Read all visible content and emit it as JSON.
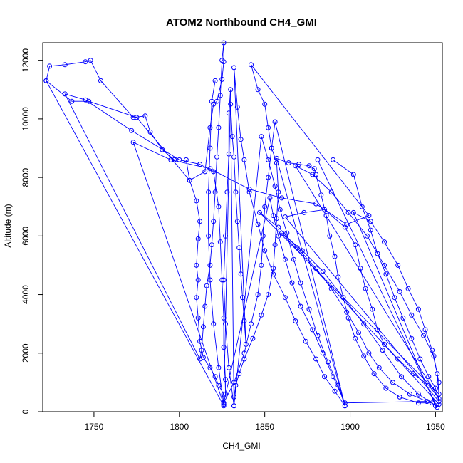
{
  "chart_data": {
    "type": "line",
    "title": "ATOM2 Northbound CH4_GMI",
    "xlabel": "CH4_GMI",
    "ylabel": "Altitude (m)",
    "xlim": [
      1720,
      1954
    ],
    "ylim": [
      0,
      12600
    ],
    "xticks": [
      1750,
      1800,
      1850,
      1900,
      1950
    ],
    "yticks": [
      0,
      2000,
      4000,
      6000,
      8000,
      10000,
      12000
    ],
    "grid": false,
    "series": [
      {
        "color": "#0000ff",
        "markers": "open-circle",
        "points": [
          [
            1722,
            11300
          ],
          [
            1724,
            11800
          ],
          [
            1733,
            11850
          ],
          [
            1745,
            11950
          ],
          [
            1748,
            12000
          ],
          [
            1754,
            11300
          ],
          [
            1773,
            10050
          ],
          [
            1780,
            10100
          ],
          [
            1783,
            9550
          ],
          [
            1790,
            8950
          ],
          [
            1797,
            8600
          ],
          [
            1804,
            8600
          ],
          [
            1806,
            7900
          ],
          [
            1810,
            7200
          ],
          [
            1812,
            6500
          ],
          [
            1811,
            5900
          ],
          [
            1810,
            5000
          ],
          [
            1811,
            4500
          ],
          [
            1810,
            3900
          ],
          [
            1811,
            3200
          ],
          [
            1812,
            2400
          ],
          [
            1814,
            1850
          ],
          [
            1818,
            1500
          ],
          [
            1821,
            1200
          ],
          [
            1823,
            900
          ],
          [
            1826,
            600
          ],
          [
            1826,
            200
          ],
          [
            1722,
            11300
          ],
          [
            1737,
            10600
          ],
          [
            1747,
            10600
          ],
          [
            1775,
            10050
          ],
          [
            1806,
            7900
          ],
          [
            1815,
            8200
          ],
          [
            1818,
            9700
          ],
          [
            1820,
            10500
          ],
          [
            1822,
            10600
          ],
          [
            1825,
            11350
          ],
          [
            1826,
            11950
          ],
          [
            1826,
            12600
          ],
          [
            1825,
            12000
          ],
          [
            1824,
            10800
          ],
          [
            1823,
            9700
          ],
          [
            1822,
            8700
          ],
          [
            1821,
            7500
          ],
          [
            1820,
            6500
          ],
          [
            1819,
            5700
          ],
          [
            1818,
            5000
          ],
          [
            1816,
            4300
          ],
          [
            1815,
            3600
          ],
          [
            1814,
            2900
          ],
          [
            1813,
            2100
          ],
          [
            1812,
            1800
          ],
          [
            1733,
            10850
          ],
          [
            1745,
            10650
          ],
          [
            1772,
            9600
          ],
          [
            1800,
            8600
          ],
          [
            1812,
            8450
          ],
          [
            1820,
            8200
          ],
          [
            1823,
            7000
          ],
          [
            1824,
            5800
          ],
          [
            1825,
            4500
          ],
          [
            1826,
            3200
          ],
          [
            1826,
            2200
          ],
          [
            1827,
            1100
          ],
          [
            1827,
            600
          ],
          [
            1826,
            250
          ],
          [
            1773,
            9200
          ],
          [
            1795,
            8600
          ],
          [
            1818,
            8300
          ],
          [
            1841,
            7600
          ],
          [
            1860,
            7300
          ],
          [
            1880,
            7100
          ],
          [
            1898,
            6400
          ],
          [
            1911,
            6700
          ],
          [
            1842,
            11850
          ],
          [
            1846,
            11000
          ],
          [
            1850,
            10500
          ],
          [
            1852,
            9700
          ],
          [
            1854,
            9000
          ],
          [
            1857,
            8500
          ],
          [
            1858,
            7500
          ],
          [
            1857,
            6600
          ],
          [
            1856,
            5700
          ],
          [
            1855,
            4900
          ],
          [
            1852,
            4000
          ],
          [
            1848,
            3300
          ],
          [
            1843,
            2500
          ],
          [
            1838,
            1800
          ],
          [
            1835,
            1300
          ],
          [
            1833,
            900
          ],
          [
            1832,
            500
          ],
          [
            1832,
            200
          ],
          [
            1830,
            10500
          ],
          [
            1831,
            9400
          ],
          [
            1832,
            8700
          ],
          [
            1833,
            7500
          ],
          [
            1834,
            6500
          ],
          [
            1835,
            5600
          ],
          [
            1836,
            4700
          ],
          [
            1837,
            3900
          ],
          [
            1838,
            3100
          ],
          [
            1839,
            2300
          ],
          [
            1832,
            11750
          ],
          [
            1834,
            10400
          ],
          [
            1836,
            9300
          ],
          [
            1838,
            8600
          ],
          [
            1841,
            7500
          ],
          [
            1846,
            6400
          ],
          [
            1850,
            5500
          ],
          [
            1855,
            4700
          ],
          [
            1862,
            3900
          ],
          [
            1868,
            3100
          ],
          [
            1874,
            2400
          ],
          [
            1880,
            1800
          ],
          [
            1885,
            1200
          ],
          [
            1891,
            700
          ],
          [
            1897,
            200
          ],
          [
            1857,
            8650
          ],
          [
            1864,
            8500
          ],
          [
            1870,
            8450
          ],
          [
            1876,
            8400
          ],
          [
            1879,
            8300
          ],
          [
            1880,
            8100
          ],
          [
            1883,
            7400
          ],
          [
            1886,
            6700
          ],
          [
            1888,
            6000
          ],
          [
            1891,
            5300
          ],
          [
            1893,
            4600
          ],
          [
            1896,
            3900
          ],
          [
            1899,
            3200
          ],
          [
            1903,
            2500
          ],
          [
            1908,
            1900
          ],
          [
            1914,
            1300
          ],
          [
            1921,
            800
          ],
          [
            1929,
            500
          ],
          [
            1940,
            300
          ],
          [
            1948,
            300
          ],
          [
            1951,
            150
          ],
          [
            1881,
            8600
          ],
          [
            1890,
            8600
          ],
          [
            1902,
            8100
          ],
          [
            1907,
            7000
          ],
          [
            1912,
            6200
          ],
          [
            1916,
            5400
          ],
          [
            1921,
            4700
          ],
          [
            1926,
            3900
          ],
          [
            1931,
            3200
          ],
          [
            1936,
            2500
          ],
          [
            1941,
            1800
          ],
          [
            1946,
            1200
          ],
          [
            1950,
            800
          ],
          [
            1952,
            350
          ],
          [
            1862,
            6650
          ],
          [
            1873,
            6800
          ],
          [
            1885,
            6900
          ],
          [
            1897,
            6300
          ],
          [
            1903,
            5700
          ],
          [
            1906,
            4900
          ],
          [
            1909,
            4200
          ],
          [
            1913,
            3500
          ],
          [
            1916,
            2800
          ],
          [
            1920,
            2300
          ],
          [
            1928,
            1800
          ],
          [
            1937,
            1300
          ],
          [
            1946,
            900
          ],
          [
            1952,
            450
          ],
          [
            1868,
            8400
          ],
          [
            1878,
            8100
          ],
          [
            1889,
            7500
          ],
          [
            1899,
            6800
          ],
          [
            1910,
            6000
          ],
          [
            1920,
            5000
          ],
          [
            1929,
            4100
          ],
          [
            1936,
            3300
          ],
          [
            1943,
            2600
          ],
          [
            1949,
            1900
          ],
          [
            1952,
            1000
          ],
          [
            1952,
            250
          ],
          [
            1860,
            6100
          ],
          [
            1872,
            5500
          ],
          [
            1884,
            4800
          ],
          [
            1896,
            3900
          ],
          [
            1908,
            3000
          ],
          [
            1919,
            2100
          ],
          [
            1930,
            1200
          ],
          [
            1940,
            600
          ],
          [
            1950,
            200
          ],
          [
            1902,
            6800
          ],
          [
            1912,
            6500
          ],
          [
            1920,
            5800
          ],
          [
            1928,
            5000
          ],
          [
            1934,
            4200
          ],
          [
            1940,
            3500
          ],
          [
            1944,
            2800
          ],
          [
            1948,
            2100
          ],
          [
            1951,
            1300
          ],
          [
            1952,
            600
          ],
          [
            1847,
            6800
          ],
          [
            1858,
            6300
          ],
          [
            1869,
            5600
          ],
          [
            1880,
            4900
          ],
          [
            1889,
            4200
          ],
          [
            1898,
            3400
          ],
          [
            1905,
            2700
          ],
          [
            1911,
            2000
          ],
          [
            1917,
            1500
          ],
          [
            1925,
            1000
          ],
          [
            1935,
            600
          ],
          [
            1945,
            350
          ],
          [
            1897,
            300
          ],
          [
            1890,
            1200
          ],
          [
            1884,
            2000
          ],
          [
            1878,
            2800
          ],
          [
            1871,
            3600
          ],
          [
            1866,
            4400
          ],
          [
            1862,
            5200
          ],
          [
            1858,
            6000
          ],
          [
            1855,
            6700
          ],
          [
            1853,
            7300
          ],
          [
            1826,
            300
          ],
          [
            1832,
            1000
          ],
          [
            1838,
            2000
          ],
          [
            1842,
            3000
          ],
          [
            1846,
            4000
          ],
          [
            1848,
            5000
          ],
          [
            1849,
            6000
          ],
          [
            1850,
            7000
          ],
          [
            1852,
            8000
          ],
          [
            1854,
            9000
          ],
          [
            1856,
            9900
          ],
          [
            1897,
            200
          ],
          [
            1893,
            900
          ],
          [
            1887,
            1700
          ],
          [
            1881,
            2600
          ],
          [
            1876,
            3500
          ],
          [
            1871,
            4400
          ],
          [
            1867,
            5200
          ],
          [
            1863,
            6100
          ],
          [
            1859,
            6900
          ],
          [
            1856,
            7700
          ],
          [
            1852,
            8600
          ],
          [
            1848,
            9400
          ],
          [
            1832,
            200
          ],
          [
            1829,
            1500
          ],
          [
            1827,
            3000
          ],
          [
            1826,
            4500
          ],
          [
            1827,
            6000
          ],
          [
            1828,
            7500
          ],
          [
            1829,
            8800
          ],
          [
            1829,
            10200
          ],
          [
            1830,
            11000
          ],
          [
            1826,
            250
          ],
          [
            1823,
            1500
          ],
          [
            1820,
            3000
          ],
          [
            1818,
            4500
          ],
          [
            1817,
            6000
          ],
          [
            1817,
            7500
          ],
          [
            1818,
            9000
          ],
          [
            1819,
            10600
          ],
          [
            1821,
            11300
          ]
        ]
      }
    ]
  }
}
